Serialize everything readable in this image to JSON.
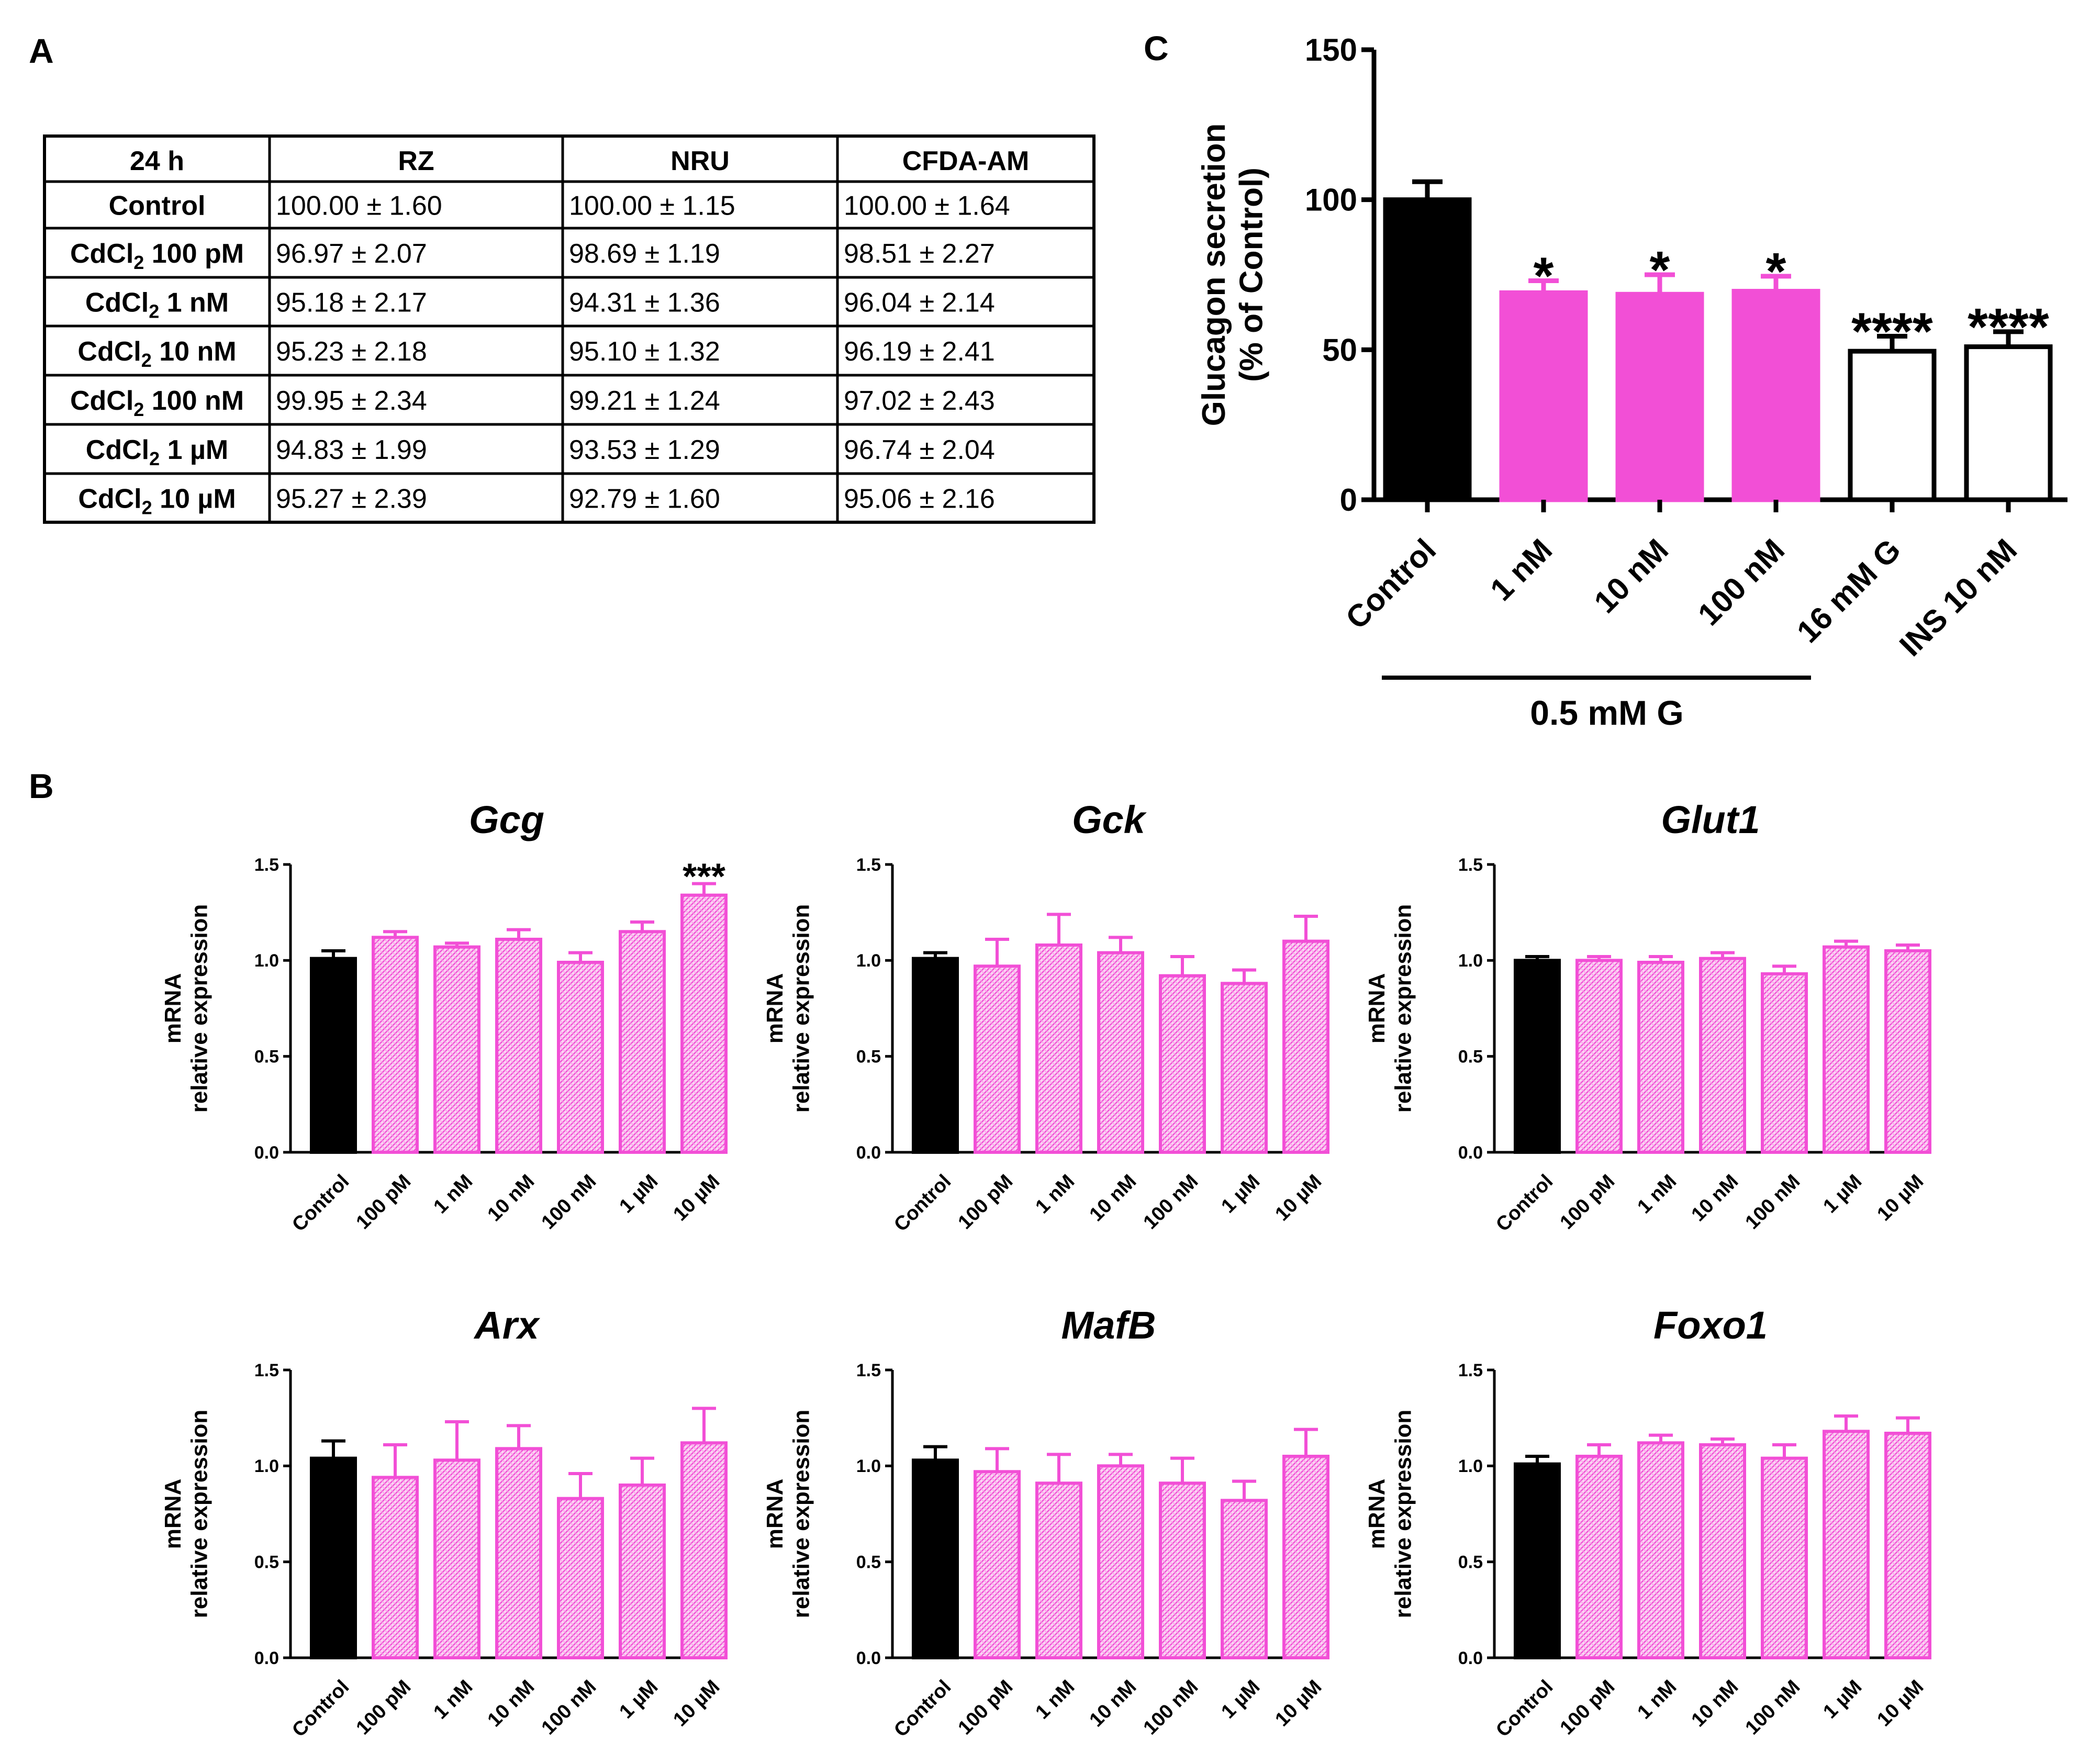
{
  "panels": {
    "a": "A",
    "b": "B",
    "c": "C"
  },
  "colors": {
    "control": "#000000",
    "cadmium": "#f24fd6",
    "hatch_bg": "#fbd3f4",
    "other": "#ffffff"
  },
  "table": {
    "headers": [
      "24 h",
      "RZ",
      "NRU",
      "CFDA-AM"
    ],
    "rows": [
      {
        "label": "Control",
        "sub": "",
        "suffix": "",
        "values": [
          "100.00 ± 1.60",
          "100.00 ± 1.15",
          "100.00 ± 1.64"
        ]
      },
      {
        "label": "CdCl",
        "sub": "2",
        "suffix": " 100 pM",
        "values": [
          "96.97 ± 2.07",
          "98.69 ± 1.19",
          "98.51 ± 2.27"
        ]
      },
      {
        "label": "CdCl",
        "sub": "2",
        "suffix": " 1 nM",
        "values": [
          "95.18 ± 2.17",
          "94.31 ± 1.36",
          "96.04 ± 2.14"
        ]
      },
      {
        "label": "CdCl",
        "sub": "2",
        "suffix": " 10 nM",
        "values": [
          "95.23 ± 2.18",
          "95.10 ± 1.32",
          "96.19 ± 2.41"
        ]
      },
      {
        "label": "CdCl",
        "sub": "2",
        "suffix": " 100 nM",
        "values": [
          "99.95 ± 2.34",
          "99.21 ± 1.24",
          "97.02 ± 2.43"
        ]
      },
      {
        "label": "CdCl",
        "sub": "2",
        "suffix": " 1 µM",
        "values": [
          "94.83 ± 1.99",
          "93.53 ± 1.29",
          "96.74 ± 2.04"
        ]
      },
      {
        "label": "CdCl",
        "sub": "2",
        "suffix": " 10 µM",
        "values": [
          "95.27 ± 2.39",
          "92.79 ± 1.60",
          "95.06 ± 2.16"
        ]
      }
    ]
  },
  "chart_data": [
    {
      "id": "C",
      "type": "bar",
      "ylabel_lines": [
        "Glucagon secretion",
        "(% of Control)"
      ],
      "ylim": [
        0,
        150
      ],
      "yticks": [
        0,
        50,
        100,
        150
      ],
      "categories": [
        "Control",
        "1 nM",
        "10 nM",
        "100 nM",
        "16 mM G",
        "INS 10 nM"
      ],
      "values": [
        100,
        69,
        68.5,
        69.5,
        49.5,
        51
      ],
      "errors": [
        6,
        4,
        6.5,
        5,
        5,
        5
      ],
      "groups": [
        "control",
        "cadmium",
        "cadmium",
        "cadmium",
        "other",
        "other"
      ],
      "significance": [
        "",
        "*",
        "*",
        "*",
        "****",
        "****"
      ],
      "bracket": {
        "label": "0.5 mM G",
        "from_index": 0,
        "to_index": 3
      }
    },
    {
      "id": "B-Gcg",
      "type": "bar",
      "title": "Gcg",
      "ylabel_lines": [
        "mRNA",
        "relative expression"
      ],
      "ylim": [
        0,
        1.5
      ],
      "yticks": [
        0.0,
        0.5,
        1.0,
        1.5
      ],
      "categories": [
        "Control",
        "100 pM",
        "1 nM",
        "10 nM",
        "100 nM",
        "1 µM",
        "10 µM"
      ],
      "values": [
        1.01,
        1.12,
        1.07,
        1.11,
        0.99,
        1.15,
        1.34
      ],
      "errors": [
        0.04,
        0.03,
        0.02,
        0.05,
        0.05,
        0.05,
        0.06
      ],
      "significance": [
        "",
        "",
        "",
        "",
        "",
        "",
        "***"
      ]
    },
    {
      "id": "B-Gck",
      "type": "bar",
      "title": "Gck",
      "ylabel_lines": [
        "mRNA",
        "relative expression"
      ],
      "ylim": [
        0,
        1.5
      ],
      "yticks": [
        0.0,
        0.5,
        1.0,
        1.5
      ],
      "categories": [
        "Control",
        "100 pM",
        "1 nM",
        "10 nM",
        "100 nM",
        "1 µM",
        "10 µM"
      ],
      "values": [
        1.01,
        0.97,
        1.08,
        1.04,
        0.92,
        0.88,
        1.1
      ],
      "errors": [
        0.03,
        0.14,
        0.16,
        0.08,
        0.1,
        0.07,
        0.13
      ],
      "significance": [
        "",
        "",
        "",
        "",
        "",
        "",
        ""
      ]
    },
    {
      "id": "B-Glut1",
      "type": "bar",
      "title": "Glut1",
      "ylabel_lines": [
        "mRNA",
        "relative expression"
      ],
      "ylim": [
        0,
        1.5
      ],
      "yticks": [
        0.0,
        0.5,
        1.0,
        1.5
      ],
      "categories": [
        "Control",
        "100 pM",
        "1 nM",
        "10 nM",
        "100 nM",
        "1 µM",
        "10 µM"
      ],
      "values": [
        1.0,
        1.0,
        0.99,
        1.01,
        0.93,
        1.07,
        1.05
      ],
      "errors": [
        0.02,
        0.02,
        0.03,
        0.03,
        0.04,
        0.03,
        0.03
      ],
      "significance": [
        "",
        "",
        "",
        "",
        "",
        "",
        ""
      ]
    },
    {
      "id": "B-Arx",
      "type": "bar",
      "title": "Arx",
      "ylabel_lines": [
        "mRNA",
        "relative expression"
      ],
      "ylim": [
        0,
        1.5
      ],
      "yticks": [
        0.0,
        0.5,
        1.0,
        1.5
      ],
      "categories": [
        "Control",
        "100 pM",
        "1 nM",
        "10 nM",
        "100 nM",
        "1 µM",
        "10 µM"
      ],
      "values": [
        1.04,
        0.94,
        1.03,
        1.09,
        0.83,
        0.9,
        1.12
      ],
      "errors": [
        0.09,
        0.17,
        0.2,
        0.12,
        0.13,
        0.14,
        0.18
      ],
      "significance": [
        "",
        "",
        "",
        "",
        "",
        "",
        ""
      ]
    },
    {
      "id": "B-MafB",
      "type": "bar",
      "title": "MafB",
      "ylabel_lines": [
        "mRNA",
        "relative expression"
      ],
      "ylim": [
        0,
        1.5
      ],
      "yticks": [
        0.0,
        0.5,
        1.0,
        1.5
      ],
      "categories": [
        "Control",
        "100 pM",
        "1 nM",
        "10 nM",
        "100 nM",
        "1 µM",
        "10 µM"
      ],
      "values": [
        1.03,
        0.97,
        0.91,
        1.0,
        0.91,
        0.82,
        1.05
      ],
      "errors": [
        0.07,
        0.12,
        0.15,
        0.06,
        0.13,
        0.1,
        0.14
      ],
      "significance": [
        "",
        "",
        "",
        "",
        "",
        "",
        ""
      ]
    },
    {
      "id": "B-Foxo1",
      "type": "bar",
      "title": "Foxo1",
      "ylabel_lines": [
        "mRNA",
        "relative expression"
      ],
      "ylim": [
        0,
        1.5
      ],
      "yticks": [
        0.0,
        0.5,
        1.0,
        1.5
      ],
      "categories": [
        "Control",
        "100 pM",
        "1 nM",
        "10 nM",
        "100 nM",
        "1 µM",
        "10 µM"
      ],
      "values": [
        1.01,
        1.05,
        1.12,
        1.11,
        1.04,
        1.18,
        1.17
      ],
      "errors": [
        0.04,
        0.06,
        0.04,
        0.03,
        0.07,
        0.08,
        0.08
      ],
      "significance": [
        "",
        "",
        "",
        "",
        "",
        "",
        ""
      ]
    }
  ]
}
